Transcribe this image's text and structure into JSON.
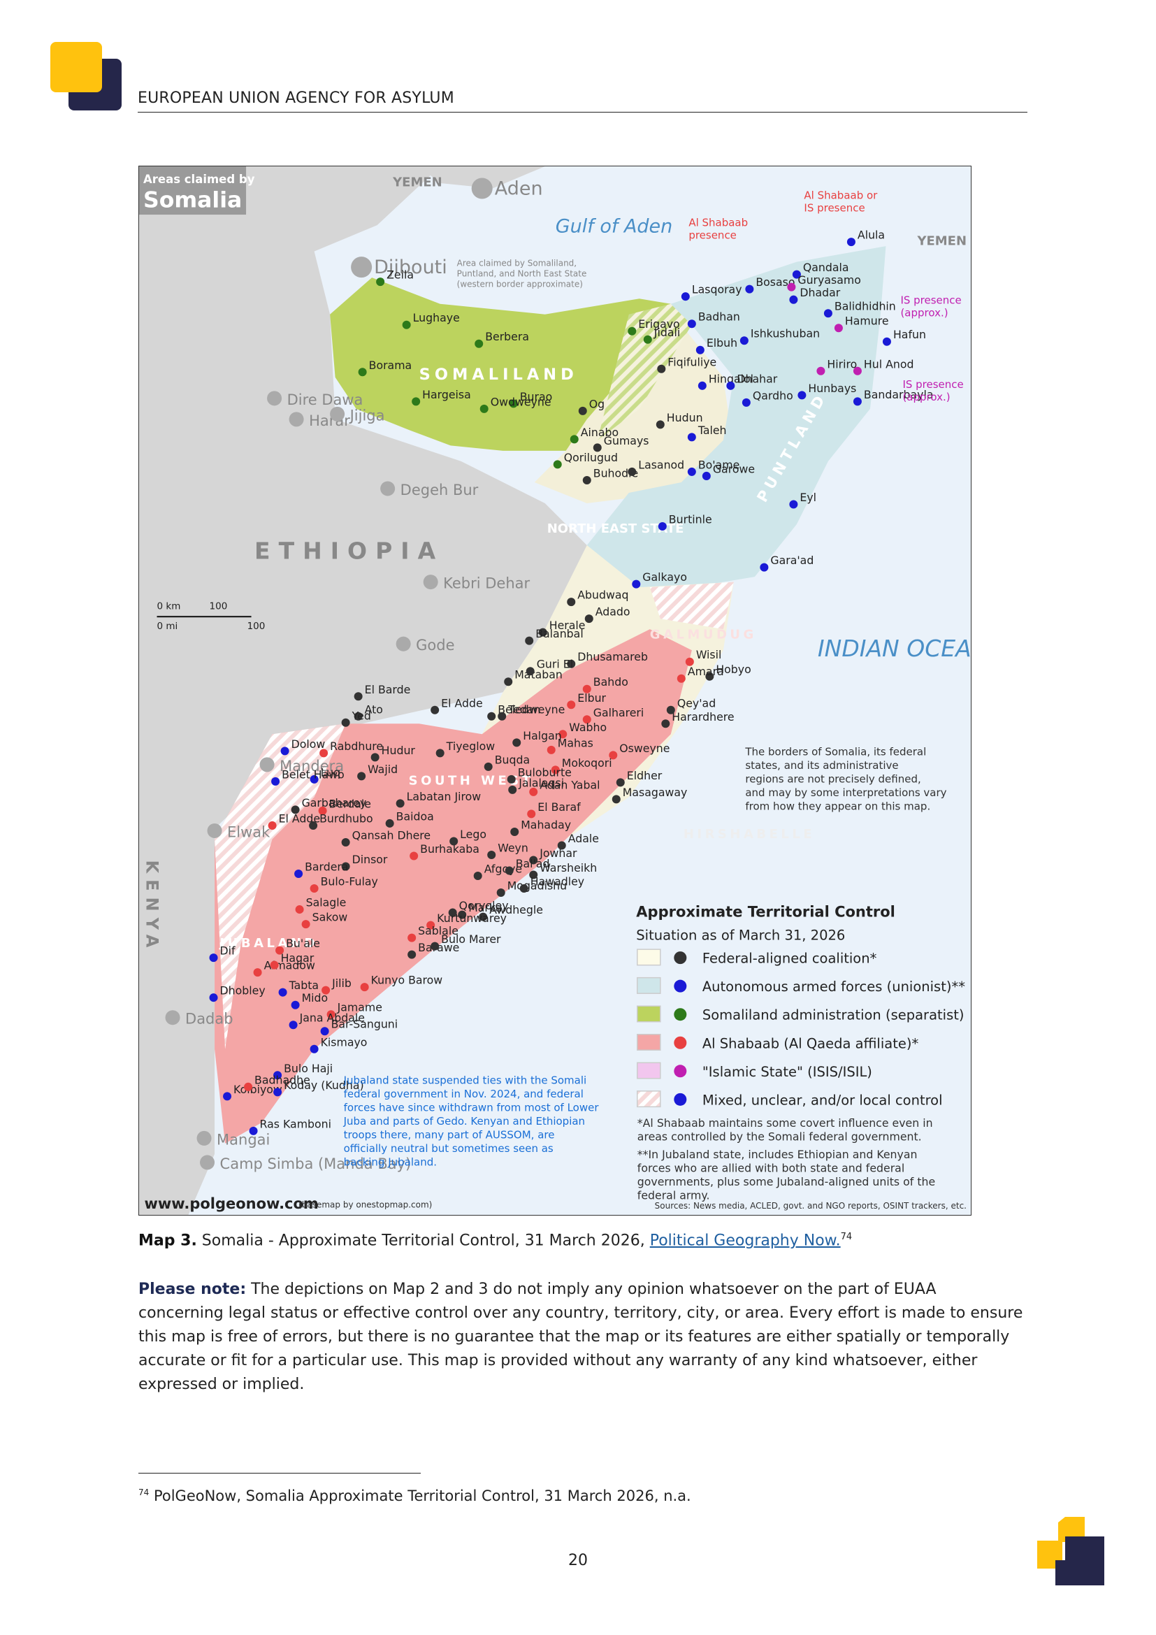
{
  "header": {
    "title": "EUROPEAN UNION AGENCY FOR ASYLUM"
  },
  "map": {
    "corner_top": "Areas claimed by",
    "corner_title": "Somalia",
    "regions": [
      "SOMALILAND",
      "PUNTLAND",
      "NORTH EAST STATE",
      "GALMUDUG",
      "HIRSHABELLE",
      "SOUTH WEST",
      "JUBALAND",
      "ETHIOPIA",
      "KENYA",
      "YEMEN",
      "YEMEN"
    ],
    "seas": [
      "Gulf of Aden",
      "INDIAN OCEAN"
    ],
    "foreign_places": [
      "Aden",
      "Djibouti",
      "Dire Dawa",
      "Harar",
      "Jijiga",
      "Degeh Bur",
      "Kebri Dehar",
      "Gode",
      "Mandera",
      "Elwak",
      "Dadab",
      "Mangai",
      "Camp Simba (Manda Bay)"
    ],
    "places": [
      "Zeila",
      "Lughaye",
      "Borama",
      "Berbera",
      "Hargeisa",
      "Burao",
      "Erigavo",
      "Owdweyne",
      "Ainabo",
      "Qorilugud",
      "Buhodle",
      "Lasanod",
      "Gumays",
      "Hudun",
      "Taleh",
      "Bo'ame",
      "Garowe",
      "Burtinle",
      "Bosaso",
      "Qandala",
      "Alula",
      "Lasqoray",
      "Badhan",
      "Elbuh",
      "Fiqifuliye",
      "Hingalol",
      "Dhahar",
      "Qardho",
      "Hunbays",
      "Hafun",
      "Hul Anod",
      "Bandarbayla",
      "Eyl",
      "Galkayo",
      "Gara'ad",
      "Abudwaq",
      "Adado",
      "Herale",
      "Balanbal",
      "Dhusamareb",
      "Hobyo",
      "Beledweyne",
      "Baidoa",
      "Mogadishu",
      "Marka",
      "Jowhar",
      "Kismayo",
      "Barawe",
      "Afmadow",
      "Jilib",
      "Jamame",
      "Bu'ale",
      "Dinsor",
      "Garbaharey",
      "Luq",
      "Dolow",
      "Ras Kamboni",
      "Kolbiyow",
      "Dhobley",
      "Bardera",
      "Wajid",
      "Hudur",
      "Jalalaqsi",
      "Harardhere",
      "Jidali",
      "Guryasamo",
      "Dhadar",
      "Balidhidhin",
      "Hamure",
      "Ishkushuban",
      "Hiriro",
      "Wisil",
      "Amara",
      "Qey'ad",
      "Bahdo",
      "Elbur",
      "Galhareri",
      "Wabho",
      "Mahas",
      "Osweyne",
      "Mokoqori",
      "Eldher",
      "Masagaway",
      "Adan Yabal",
      "El Baraf",
      "Mahaday",
      "Adale",
      "Warsheikh",
      "Hawadley",
      "Afgoye",
      "Bal'ad",
      "Awdhegle",
      "Qoryoley",
      "Kurtunwarey",
      "Sablale",
      "Bulo Marer",
      "Kunyo Barow",
      "Jana Abdale",
      "Bar-Sanguni",
      "Bulo Haji",
      "Koday (Kudha)",
      "Badhadhe",
      "Tabta",
      "Mido",
      "Hagar",
      "Dif",
      "Salagle",
      "Sakow",
      "Bulo-Fulay",
      "Burhakaba",
      "Lego",
      "Weyn",
      "Berdale",
      "Labatan Jirow",
      "Burdhubo",
      "Qansah Dhere",
      "El Adde",
      "Belet Hawo",
      "Rabdhure",
      "Tiyeglow",
      "Buqda",
      "Buloburte",
      "Halgan",
      "El Barde",
      "Ato",
      "Yed",
      "El Adde",
      "Tedan",
      "Mataban",
      "Guri El",
      "Og"
    ],
    "annotations": [
      "Al Shabaab or IS presence",
      "Al Shabaab presence",
      "IS presence (approx.)",
      "IS presence (approx.)",
      "Area claimed by Somaliland, Puntland, and North East State (western border approximate)"
    ],
    "scale": [
      "0 km",
      "100",
      "0 mi",
      "100"
    ],
    "borders_note": "The borders of Somalia, its federal states, and its administrative regions are not precisely defined, and may by some interpretations vary from how they appear on this map.",
    "jubaland_note": "Jubaland state suspended ties with the Somali federal government in Nov. 2024, and federal forces have since withdrawn from most of Lower Juba and parts of Gedo. Kenyan and Ethiopian troops there, many part of AUSSOM, are officially neutral but sometimes seen as backing Jubaland.",
    "legend": {
      "title": "Approximate Territorial Control",
      "subtitle": "Situation as of March 31, 2026",
      "items": [
        "Federal-aligned coalition*",
        "Autonomous armed forces (unionist)**",
        "Somaliland administration (separatist)",
        "Al Shabaab (Al Qaeda affiliate)*",
        "\"Islamic State\" (ISIS/ISIL)",
        "Mixed, unclear, and/or local control"
      ],
      "notes": [
        "*Al Shabaab maintains some covert influence even in areas controlled by the Somali federal government.",
        "**In Jubaland state, includes Ethiopian and Kenyan forces who are allied with both state and federal governments, plus some Jubaland-aligned units of the federal army."
      ]
    },
    "site": "www.polgeonow.com",
    "basemap": "(basemap by onestopmap.com)",
    "sources": "Sources: News media, ACLED, govt. and NGO reports, OSINT trackers, etc."
  },
  "caption": {
    "label": "Map 3.",
    "text": " Somalia - Approximate Territorial Control, 31 March 2026, ",
    "link": "Political Geography Now.",
    "ref": "74"
  },
  "note": {
    "label": "Please note:",
    "text": " The depictions on Map 2 and 3 do not imply any opinion whatsoever on the part of EUAA concerning legal status or effective control over any country, territory, city, or area. Every effort is made to ensure this map is free of errors, but there is no guarantee that the map or its features are either spatially or temporally accurate or fit for a particular use. This map is provided without any warranty of any kind whatsoever, either expressed or implied."
  },
  "footnote": {
    "ref": "74",
    "text": " PolGeoNow, Somalia Approximate Territorial Control, 31 March 2026, n.a."
  },
  "page_number": "20"
}
